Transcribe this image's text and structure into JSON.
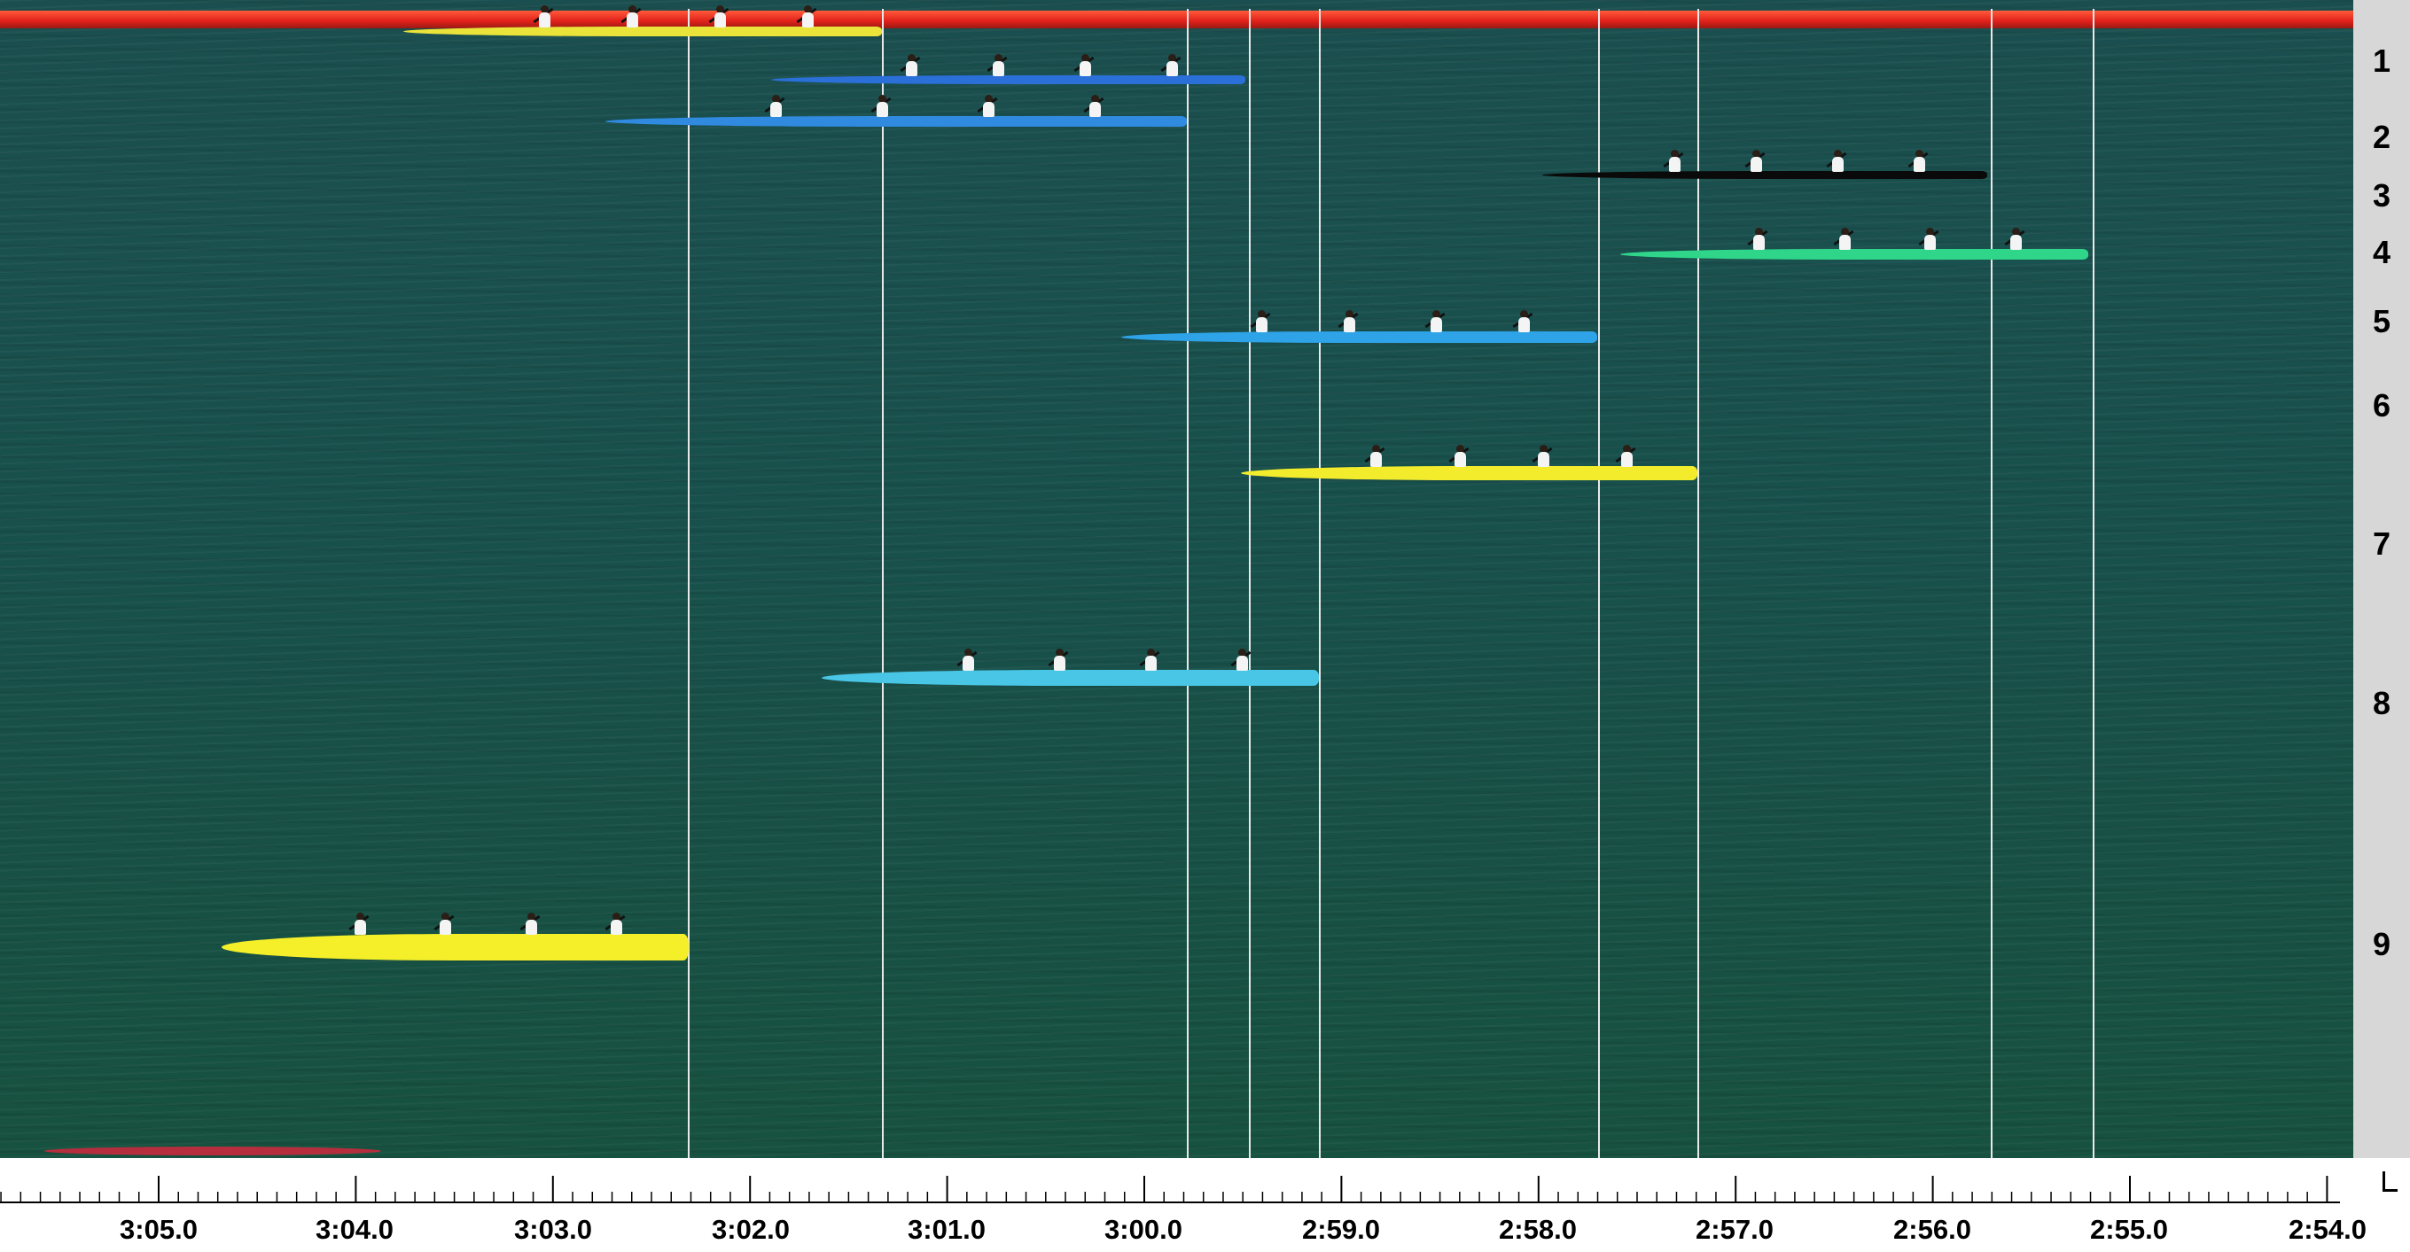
{
  "app": {
    "view": "photo-finish image",
    "accent_color": "#e0201a",
    "water_color": "#18504c"
  },
  "lanes": [
    "1",
    "2",
    "3",
    "4",
    "5",
    "6",
    "7",
    "8",
    "9"
  ],
  "time_axis": {
    "labels": [
      "3:05.0",
      "3:04.0",
      "3:03.0",
      "3:02.0",
      "3:01.0",
      "3:00.0",
      "2:59.0",
      "2:58.0",
      "2:57.0",
      "2:56.0",
      "2:55.0",
      "2:54.0"
    ]
  },
  "boats": [
    {
      "lane": "1",
      "color": "#e9e33a",
      "crew": 4
    },
    {
      "lane": "1",
      "color": "#2b6fd8",
      "crew": 4
    },
    {
      "lane": "2",
      "color": "#2f8ae0",
      "crew": 4
    },
    {
      "lane": "3",
      "color": "#0a0a0a",
      "crew": 4
    },
    {
      "lane": "4",
      "color": "#2fd68a",
      "crew": 4
    },
    {
      "lane": "5",
      "color": "#2fa3e8",
      "crew": 4
    },
    {
      "lane": "7",
      "color": "#f2ec2c",
      "crew": 4
    },
    {
      "lane": "8",
      "color": "#49c6e6",
      "crew": 4
    },
    {
      "lane": "9",
      "color": "#f4ef28",
      "crew": 4
    }
  ]
}
